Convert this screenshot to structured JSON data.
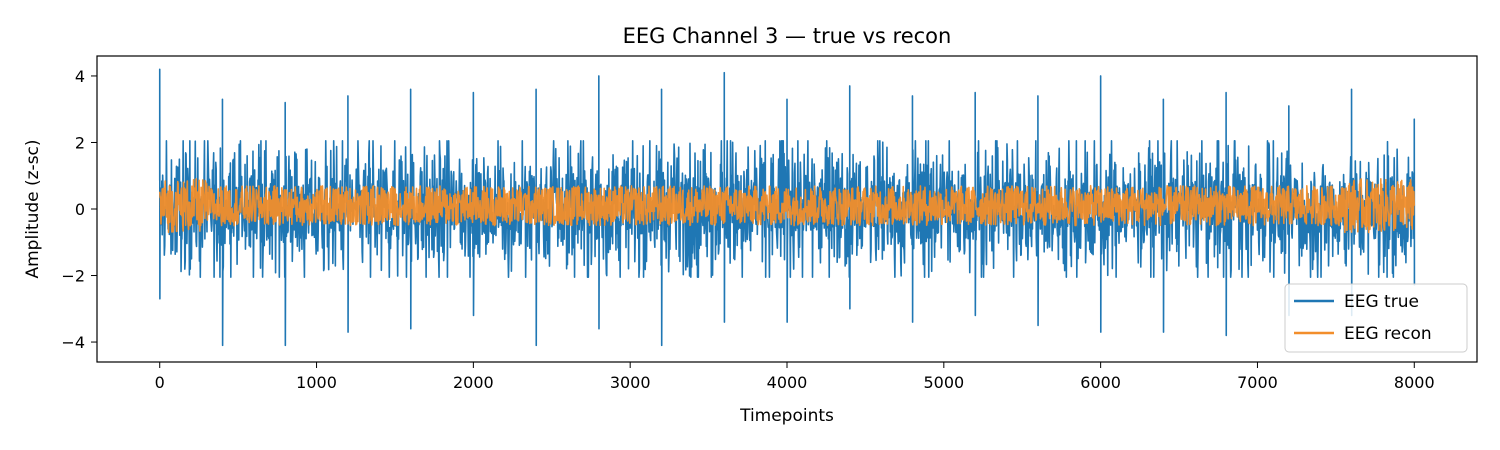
{
  "chart_data": {
    "type": "line",
    "title": "EEG Channel 3 — true vs recon",
    "xlabel": "Timepoints",
    "ylabel": "Amplitude (z-sc)",
    "xlim": [
      -400,
      8400
    ],
    "ylim": [
      -4.6,
      4.6
    ],
    "x_ticks": [
      0,
      1000,
      2000,
      3000,
      4000,
      5000,
      6000,
      7000,
      8000
    ],
    "y_ticks": [
      -4,
      -2,
      0,
      2,
      4
    ],
    "x_tick_labels": [
      "0",
      "1000",
      "2000",
      "3000",
      "4000",
      "5000",
      "6000",
      "7000",
      "8000"
    ],
    "y_tick_labels": [
      "−4",
      "−2",
      "0",
      "2",
      "4"
    ],
    "x_range": [
      0,
      8000
    ],
    "grid": false,
    "legend": {
      "position": "lower-right"
    },
    "series": [
      {
        "name": "EEG true",
        "color": "#1f77b4",
        "typical_envelope": [
          -2.0,
          2.0
        ],
        "spike_peaks": [
          {
            "x": 0,
            "y": 4.2
          },
          {
            "x": 400,
            "y": 3.3
          },
          {
            "x": 800,
            "y": 3.2
          },
          {
            "x": 1200,
            "y": 3.4
          },
          {
            "x": 1600,
            "y": 3.6
          },
          {
            "x": 2000,
            "y": 3.5
          },
          {
            "x": 2400,
            "y": 3.6
          },
          {
            "x": 2800,
            "y": 4.0
          },
          {
            "x": 3200,
            "y": 3.6
          },
          {
            "x": 3600,
            "y": 4.1
          },
          {
            "x": 4000,
            "y": 3.3
          },
          {
            "x": 4400,
            "y": 3.7
          },
          {
            "x": 4800,
            "y": 3.4
          },
          {
            "x": 5200,
            "y": 3.5
          },
          {
            "x": 5600,
            "y": 3.4
          },
          {
            "x": 6000,
            "y": 4.0
          },
          {
            "x": 6400,
            "y": 3.3
          },
          {
            "x": 6800,
            "y": 3.5
          },
          {
            "x": 7200,
            "y": 3.1
          },
          {
            "x": 7600,
            "y": 3.6
          },
          {
            "x": 8000,
            "y": 2.7
          }
        ],
        "spike_troughs": [
          {
            "x": 0,
            "y": -2.7
          },
          {
            "x": 400,
            "y": -4.1
          },
          {
            "x": 800,
            "y": -4.1
          },
          {
            "x": 1200,
            "y": -3.7
          },
          {
            "x": 1600,
            "y": -3.6
          },
          {
            "x": 2000,
            "y": -3.2
          },
          {
            "x": 2400,
            "y": -4.1
          },
          {
            "x": 2800,
            "y": -3.6
          },
          {
            "x": 3200,
            "y": -4.1
          },
          {
            "x": 3600,
            "y": -3.4
          },
          {
            "x": 4000,
            "y": -3.4
          },
          {
            "x": 4400,
            "y": -3.0
          },
          {
            "x": 4800,
            "y": -3.4
          },
          {
            "x": 5200,
            "y": -3.2
          },
          {
            "x": 5600,
            "y": -3.5
          },
          {
            "x": 6000,
            "y": -3.7
          },
          {
            "x": 6400,
            "y": -3.7
          },
          {
            "x": 6800,
            "y": -3.8
          },
          {
            "x": 7200,
            "y": -3.2
          },
          {
            "x": 7600,
            "y": -3.2
          },
          {
            "x": 8000,
            "y": -2.3
          }
        ]
      },
      {
        "name": "EEG recon",
        "color": "#f28e2b",
        "typical_envelope": [
          -0.5,
          0.7
        ]
      }
    ]
  }
}
